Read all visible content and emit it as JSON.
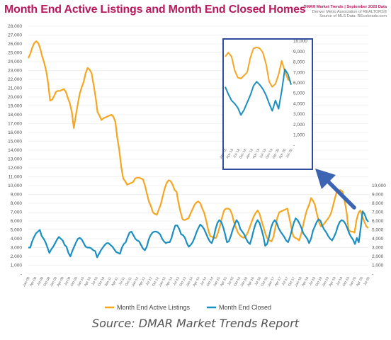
{
  "title": "Month End Active Listings and Month End Closed Homes",
  "brand": {
    "line1": "DMAR Market Trends | September 2020 Data",
    "line2": "Denver Metro Association of REALTORS®",
    "line3": "Source of MLS Data: REcolorado.com"
  },
  "source_caption": "Source: DMAR Market Trends Report",
  "colors": {
    "active": "#f5a623",
    "closed": "#1b8fc1",
    "title": "#b8195e",
    "inset_border": "#2f4c9e",
    "arrow": "#3d63b3"
  },
  "chart_data": [
    {
      "type": "line",
      "x_ticks_label_format": "Mon-YY",
      "x_start": "Jan-08",
      "x_end": "Aug-20",
      "ylim": [
        0,
        28000
      ],
      "y_ticks": [
        "-",
        "1,000",
        "2,000",
        "3,000",
        "4,000",
        "5,000",
        "6,000",
        "7,000",
        "8,000",
        "9,000",
        "10,000",
        "11,000",
        "12,000",
        "13,000",
        "14,000",
        "15,000",
        "16,000",
        "17,000",
        "18,000",
        "19,000",
        "20,000",
        "21,000",
        "22,000",
        "23,000",
        "24,000",
        "25,000",
        "26,000",
        "27,000",
        "28,000"
      ],
      "right_y_ticks": [
        "-",
        "1,000",
        "2,000",
        "3,000",
        "4,000",
        "5,000",
        "6,000",
        "7,000",
        "8,000",
        "9,000",
        "10,000"
      ],
      "x_tick_labels": [
        "Jan-08",
        "Apr-08",
        "Jul-08",
        "Oct-08",
        "Jan-09",
        "Apr-09",
        "Jul-09",
        "Oct-09",
        "Jan-10",
        "Apr-10",
        "Jul-10",
        "Oct-10",
        "Jan-11",
        "Apr-11",
        "Jul-11",
        "Oct-11",
        "Jan-12",
        "Apr-12",
        "Jul-12",
        "Oct-12",
        "Jan-13",
        "Apr-13",
        "Jul-13",
        "Oct-13",
        "Jan-14",
        "Apr-14",
        "Jul-14",
        "Oct-14",
        "Jan-15",
        "Apr-15",
        "Jul-15",
        "Oct-15",
        "Jan-16",
        "Apr-16",
        "Jul-16",
        "Oct-16",
        "Jan-17",
        "Apr-17",
        "Jul-17",
        "Oct-17",
        "Jan-18",
        "Apr-18",
        "Jul-18",
        "Oct-18",
        "Jan-19",
        "Apr-19",
        "Jul-19",
        "Oct-19",
        "Jan-20",
        "Apr-20",
        "Jul-20"
      ],
      "series": [
        {
          "name": "Month End Active Listings",
          "color": "#f5a623",
          "values": [
            24400,
            24900,
            25600,
            26100,
            26300,
            26100,
            25500,
            24600,
            23900,
            23000,
            21600,
            19600,
            19700,
            20100,
            20600,
            20700,
            20700,
            20800,
            20900,
            20600,
            19900,
            19300,
            18300,
            16500,
            17900,
            19200,
            20400,
            21100,
            21700,
            22700,
            23300,
            23100,
            22700,
            21400,
            20000,
            18300,
            17900,
            17400,
            17600,
            17700,
            17800,
            17900,
            18000,
            17800,
            17200,
            15400,
            14000,
            12100,
            10800,
            10500,
            10100,
            10200,
            10300,
            10400,
            10800,
            10900,
            10900,
            10800,
            10700,
            10000,
            9100,
            8200,
            7700,
            7000,
            6800,
            6700,
            7300,
            7900,
            8800,
            9700,
            10300,
            10600,
            10500,
            10100,
            9500,
            9300,
            8000,
            7000,
            6200,
            6100,
            6200,
            6300,
            6800,
            7300,
            7800,
            8100,
            8200,
            8000,
            7400,
            6900,
            6000,
            5000,
            4300,
            4200,
            4100,
            4100,
            4700,
            5500,
            6400,
            7200,
            7400,
            7400,
            7300,
            6800,
            5900,
            5300,
            4700,
            4400,
            4200,
            4100,
            4300,
            4700,
            5300,
            5900,
            6500,
            6900,
            7200,
            6800,
            6000,
            5300,
            4500,
            4000,
            3800,
            3700,
            4200,
            5300,
            6400,
            7000,
            7100,
            7200,
            7300,
            7400,
            6400,
            5300,
            4300,
            4100,
            4000,
            3800,
            4500,
            5500,
            6500,
            7300,
            7800,
            8600,
            8300,
            7800,
            6800,
            5900,
            5400,
            5500,
            5800,
            6100,
            6400,
            6800,
            7600,
            8500,
            9300,
            9500,
            9500,
            9300,
            8300,
            7000,
            5000,
            4800,
            4800,
            4700,
            6100,
            6900,
            7200,
            6500,
            5900,
            5400,
            5200
          ],
          "inset_values": [
            8500,
            8900,
            8500,
            7200,
            6500,
            6400,
            6700,
            7000,
            8400,
            9300,
            9400,
            9300,
            8900,
            7800,
            6100,
            5600,
            5900,
            6800,
            8100,
            7100,
            6300,
            6100
          ]
        },
        {
          "name": "Month End Closed",
          "color": "#1b8fc1",
          "values": [
            3000,
            3000,
            3700,
            4200,
            4600,
            4800,
            5000,
            4300,
            4000,
            3600,
            3000,
            2400,
            2800,
            3100,
            3500,
            3900,
            4200,
            4000,
            3800,
            3300,
            3100,
            2400,
            2000,
            2600,
            3100,
            3600,
            4000,
            4100,
            3900,
            3500,
            3100,
            3000,
            3000,
            2900,
            2700,
            2600,
            1900,
            2300,
            2700,
            3000,
            3300,
            3500,
            3500,
            3300,
            3100,
            2800,
            2500,
            2400,
            2300,
            3000,
            3400,
            3600,
            4200,
            4700,
            4800,
            4400,
            4000,
            3800,
            3700,
            3300,
            2900,
            2700,
            3100,
            3900,
            4400,
            4700,
            4800,
            4800,
            4700,
            4500,
            4000,
            3700,
            3500,
            3600,
            3600,
            4100,
            4900,
            5500,
            5500,
            5100,
            4500,
            4400,
            4100,
            3500,
            3100,
            3300,
            3600,
            4100,
            4700,
            5200,
            5600,
            5400,
            5100,
            4600,
            4100,
            3700,
            3500,
            4100,
            5100,
            5800,
            6100,
            5900,
            5300,
            4500,
            3600,
            3700,
            4300,
            5000,
            5600,
            6100,
            5800,
            5100,
            4800,
            4500,
            4000,
            3600,
            3400,
            4100,
            5000,
            5700,
            6100,
            5800,
            5100,
            4300,
            3200,
            3400,
            4200,
            5200,
            5800,
            6100,
            5800,
            5200,
            4800,
            4500,
            4200,
            3800,
            3600,
            4200,
            5000,
            5800,
            6300,
            6100,
            5700,
            5200,
            4600,
            4300,
            4000,
            3500,
            4000,
            4900,
            5400,
            5900,
            6200,
            6000,
            5400,
            5000,
            4700,
            4300,
            4000,
            3800,
            4200,
            4700,
            5400,
            5900,
            6100,
            6000,
            5700,
            5200,
            4600,
            4200,
            3900,
            3400,
            4100,
            3600,
            5200,
            7100,
            6800,
            6200,
            5900
          ],
          "inset_values": [
            5600,
            4900,
            4300,
            4000,
            3600,
            2900,
            3400,
            4100,
            4800,
            5700,
            6100,
            5800,
            5400,
            4800,
            4000,
            3300,
            4300,
            3500,
            5200,
            7300,
            6800,
            5800
          ]
        }
      ]
    },
    {
      "type": "line",
      "ylim": [
        0,
        10000
      ],
      "y_ticks": [
        "-",
        "1,000",
        "2,000",
        "3,000",
        "4,000",
        "5,000",
        "6,000",
        "7,000",
        "8,000",
        "9,000",
        "10,000"
      ],
      "x_tick_labels": [
        "Jan-'18",
        "Apr-'18",
        "Jul-'18",
        "Oct-'18",
        "Jan-'19",
        "Apr-'19",
        "Jul-'19",
        "Oct-'19",
        "Jan-'20",
        "Apr-'20",
        "Jul-'20"
      ]
    }
  ]
}
